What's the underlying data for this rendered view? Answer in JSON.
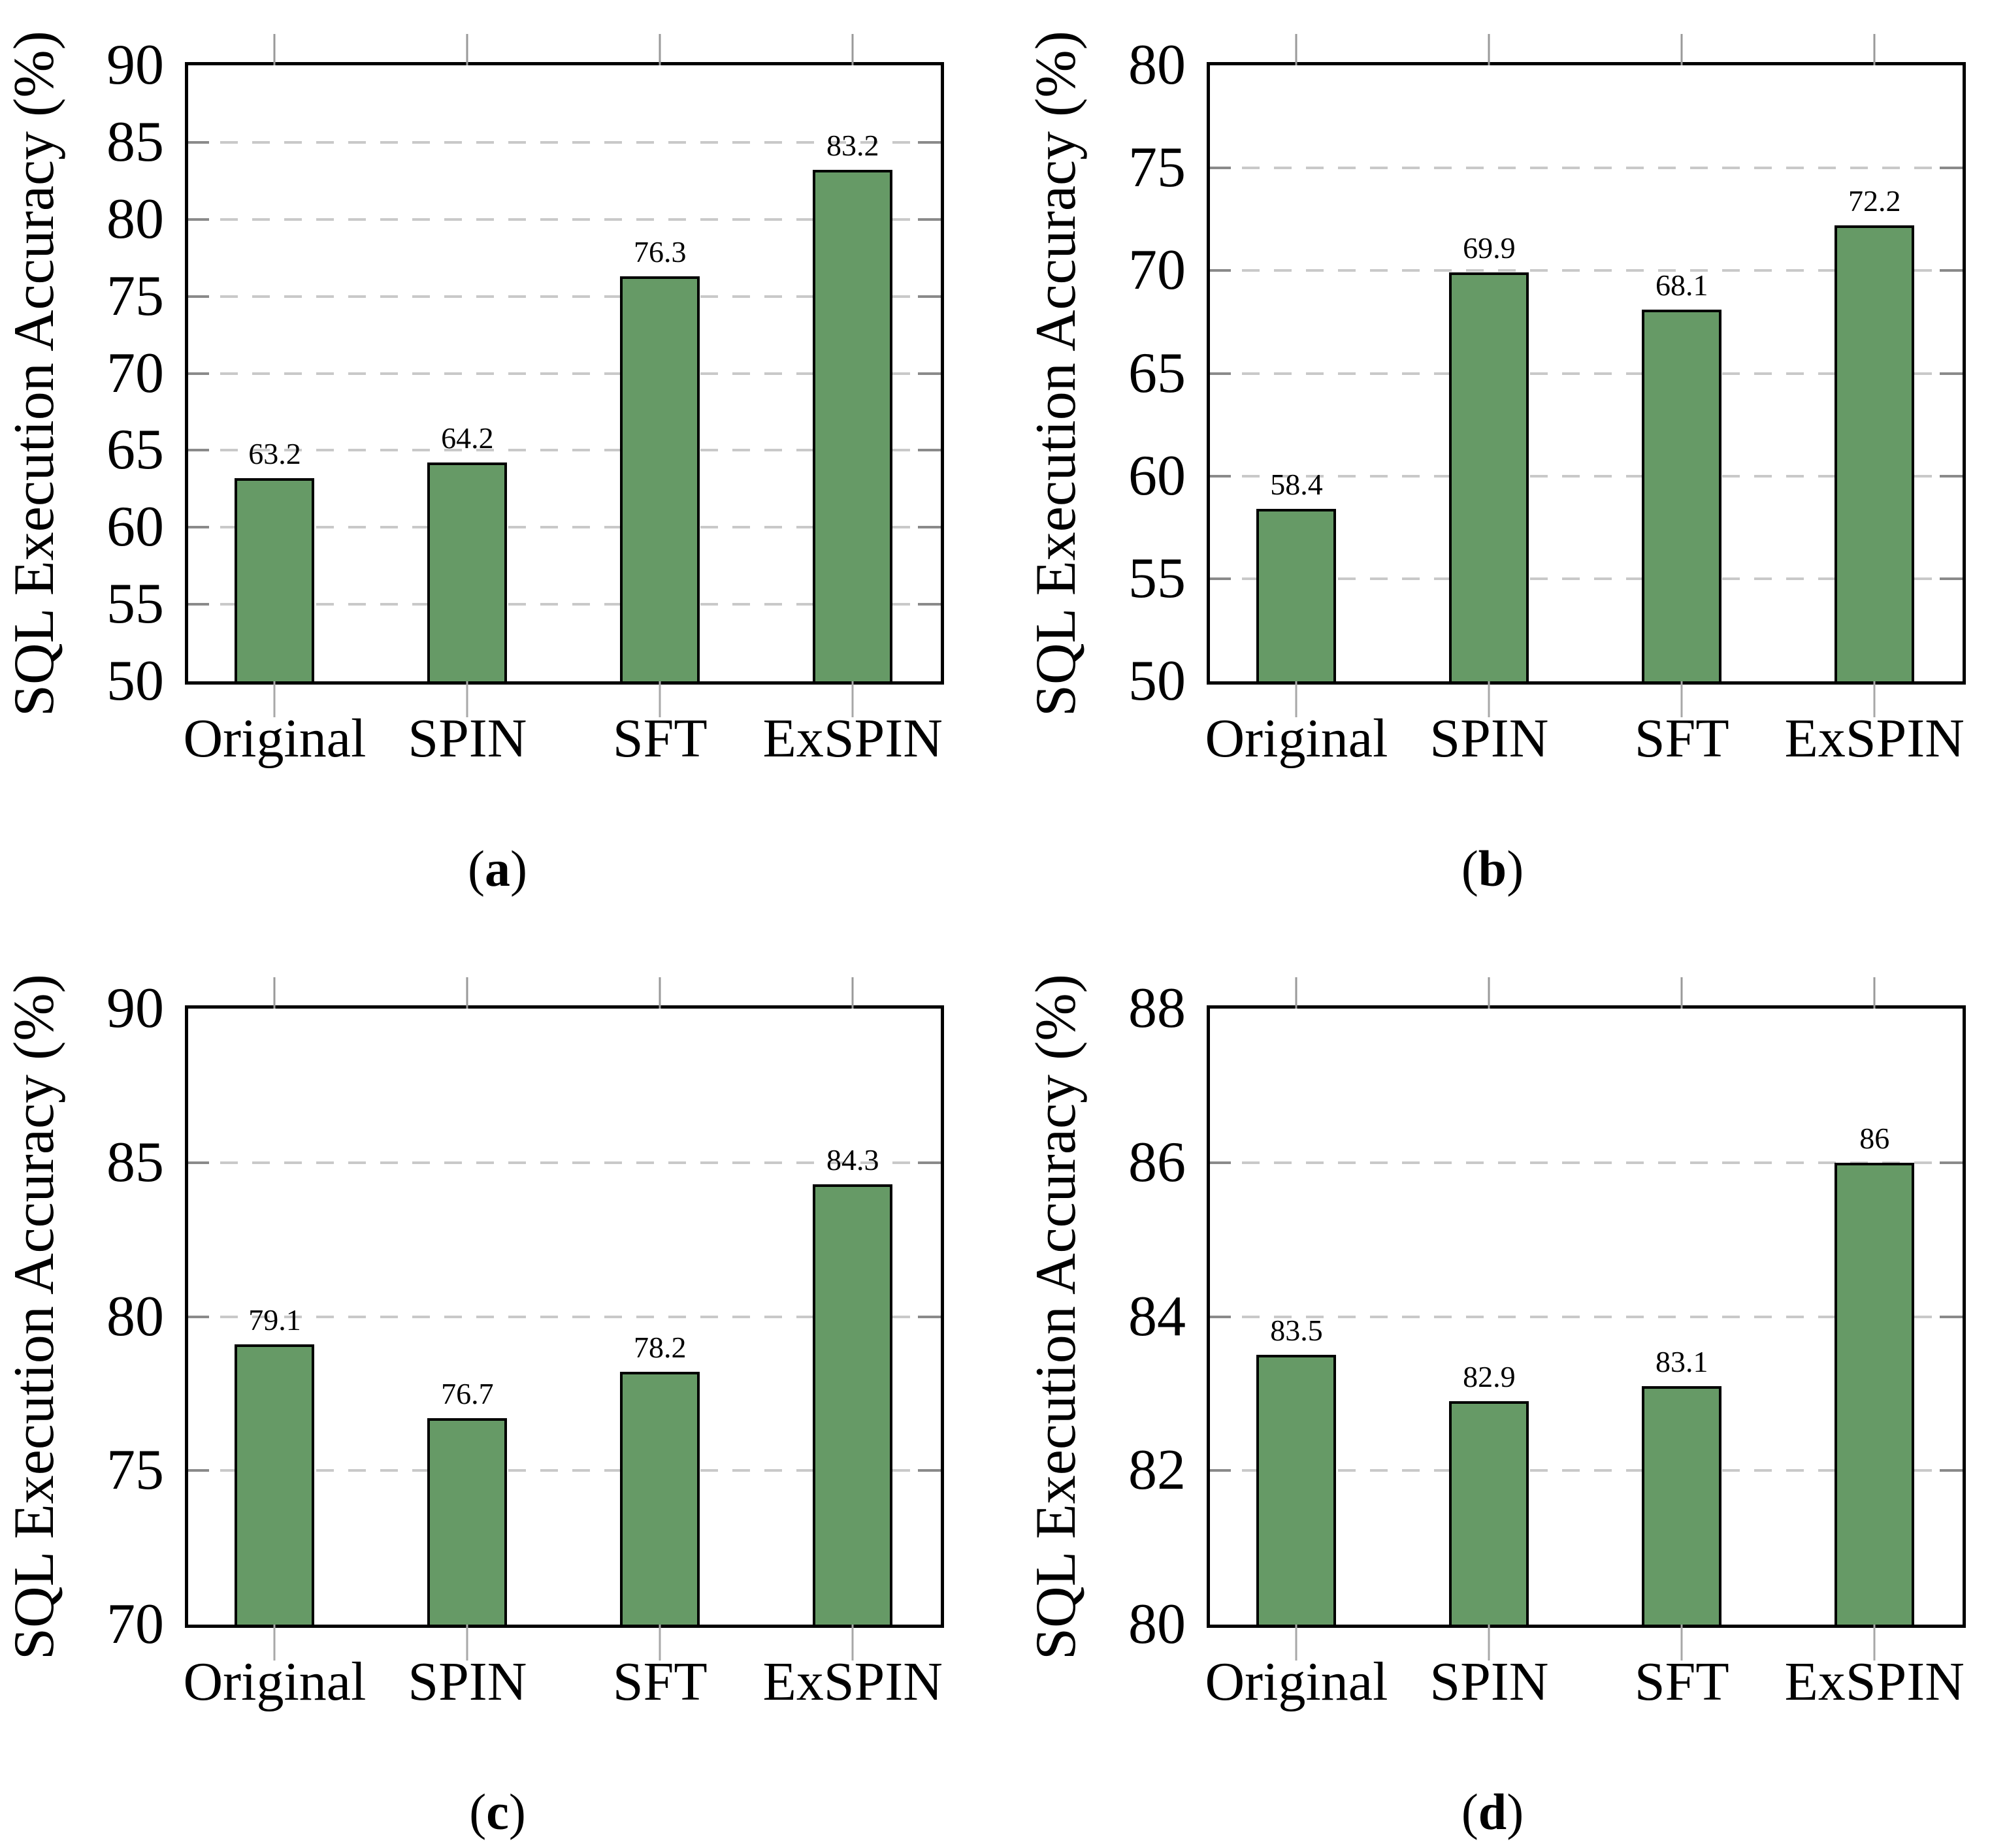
{
  "figure": {
    "paren_open": "(",
    "paren_close": ")",
    "colors": {
      "bar_fill": "#669a66",
      "bar_border": "#000000",
      "axis_border": "#000000",
      "gridline": "#c9c9c9",
      "tick_mark": "#8a8a8a"
    }
  },
  "chart_data": [
    {
      "type": "bar",
      "caption_letter": "a",
      "title": "",
      "xlabel": "",
      "ylabel": "SQL Execution Accuracy (%)",
      "categories": [
        "Original",
        "SPIN",
        "SFT",
        "ExSPIN"
      ],
      "values": [
        63.2,
        64.2,
        76.3,
        83.2
      ],
      "value_labels": [
        "63.2",
        "64.2",
        "76.3",
        "83.2"
      ],
      "ylim": [
        50,
        90
      ],
      "yticks": [
        50,
        55,
        60,
        65,
        70,
        75,
        80,
        85,
        90
      ],
      "grid": "dashed horizontal at interior y ticks",
      "legend": null
    },
    {
      "type": "bar",
      "caption_letter": "b",
      "title": "",
      "xlabel": "",
      "ylabel": "SQL Execution Accuracy (%)",
      "categories": [
        "Original",
        "SPIN",
        "SFT",
        "ExSPIN"
      ],
      "values": [
        58.4,
        69.9,
        68.1,
        72.2
      ],
      "value_labels": [
        "58.4",
        "69.9",
        "68.1",
        "72.2"
      ],
      "ylim": [
        50,
        80
      ],
      "yticks": [
        50,
        55,
        60,
        65,
        70,
        75,
        80
      ],
      "grid": "dashed horizontal at interior y ticks",
      "legend": null
    },
    {
      "type": "bar",
      "caption_letter": "c",
      "title": "",
      "xlabel": "",
      "ylabel": "SQL Execution Accuracy (%)",
      "categories": [
        "Original",
        "SPIN",
        "SFT",
        "ExSPIN"
      ],
      "values": [
        79.1,
        76.7,
        78.2,
        84.3
      ],
      "value_labels": [
        "79.1",
        "76.7",
        "78.2",
        "84.3"
      ],
      "ylim": [
        70,
        90
      ],
      "yticks": [
        70,
        75,
        80,
        85,
        90
      ],
      "grid": "dashed horizontal at interior y ticks",
      "legend": null
    },
    {
      "type": "bar",
      "caption_letter": "d",
      "title": "",
      "xlabel": "",
      "ylabel": "SQL Execution Accuracy (%)",
      "categories": [
        "Original",
        "SPIN",
        "SFT",
        "ExSPIN"
      ],
      "values": [
        83.5,
        82.9,
        83.1,
        86
      ],
      "value_labels": [
        "83.5",
        "82.9",
        "83.1",
        "86"
      ],
      "ylim": [
        80,
        88
      ],
      "yticks": [
        80,
        82,
        84,
        86,
        88
      ],
      "grid": "dashed horizontal at interior y ticks",
      "legend": null
    }
  ]
}
